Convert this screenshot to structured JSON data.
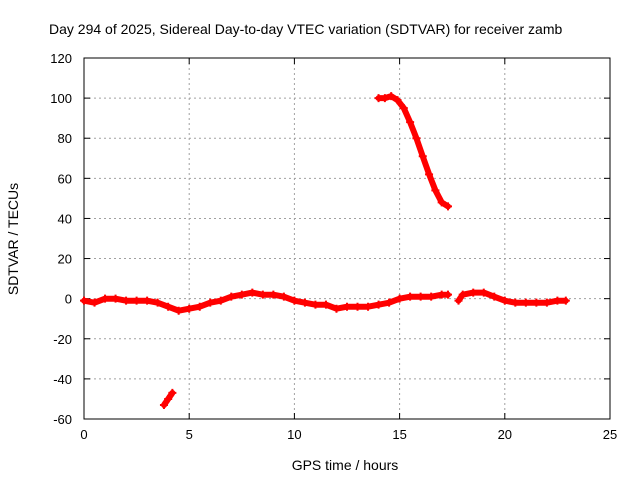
{
  "chart_data": {
    "type": "scatter",
    "title": "Day 294 of 2025, Sidereal Day-to-day VTEC variation (SDTVAR) for receiver zamb",
    "xlabel": "GPS time / hours",
    "ylabel": "SDTVAR / TECUs",
    "xlim": [
      0,
      25
    ],
    "ylim": [
      -60,
      120
    ],
    "xticks": [
      0,
      5,
      10,
      15,
      20,
      25
    ],
    "yticks": [
      -60,
      -40,
      -20,
      0,
      20,
      40,
      60,
      80,
      100,
      120
    ],
    "grid": true,
    "color": "#ff0000",
    "series": [
      {
        "name": "main-track",
        "x": [
          0.0,
          0.5,
          1.0,
          1.5,
          2.0,
          2.5,
          3.0,
          3.5,
          4.0,
          4.5,
          5.0,
          5.5,
          6.0,
          6.5,
          7.0,
          7.5,
          8.0,
          8.5,
          9.0,
          9.5,
          10.0,
          10.5,
          11.0,
          11.5,
          12.0,
          12.5,
          13.0,
          13.5,
          14.0,
          14.5,
          15.0,
          15.5,
          16.0,
          16.5,
          17.0,
          17.3
        ],
        "y": [
          -1,
          -2,
          0,
          0,
          -1,
          -1,
          -1,
          -2,
          -4,
          -6,
          -5,
          -4,
          -2,
          -1,
          1,
          2,
          3,
          2,
          2,
          1,
          -1,
          -2,
          -3,
          -3,
          -5,
          -4,
          -4,
          -4,
          -3,
          -2,
          0,
          1,
          1,
          1,
          2,
          2
        ]
      },
      {
        "name": "late-track",
        "x": [
          17.8,
          18.0,
          18.5,
          19.0,
          19.5,
          20.0,
          20.5,
          21.0,
          21.5,
          22.0,
          22.5,
          22.9
        ],
        "y": [
          -1,
          2,
          3,
          3,
          1,
          -1,
          -2,
          -2,
          -2,
          -2,
          -1,
          -1
        ]
      },
      {
        "name": "high-arc",
        "x": [
          14.0,
          14.3,
          14.6,
          14.9,
          15.2,
          15.5,
          15.8,
          16.1,
          16.4,
          16.7,
          17.0,
          17.3
        ],
        "y": [
          100,
          100,
          101,
          99,
          95,
          88,
          80,
          71,
          62,
          54,
          48,
          46
        ]
      },
      {
        "name": "low-segment",
        "x": [
          3.8,
          4.0,
          4.2
        ],
        "y": [
          -53,
          -50,
          -47
        ]
      }
    ]
  }
}
